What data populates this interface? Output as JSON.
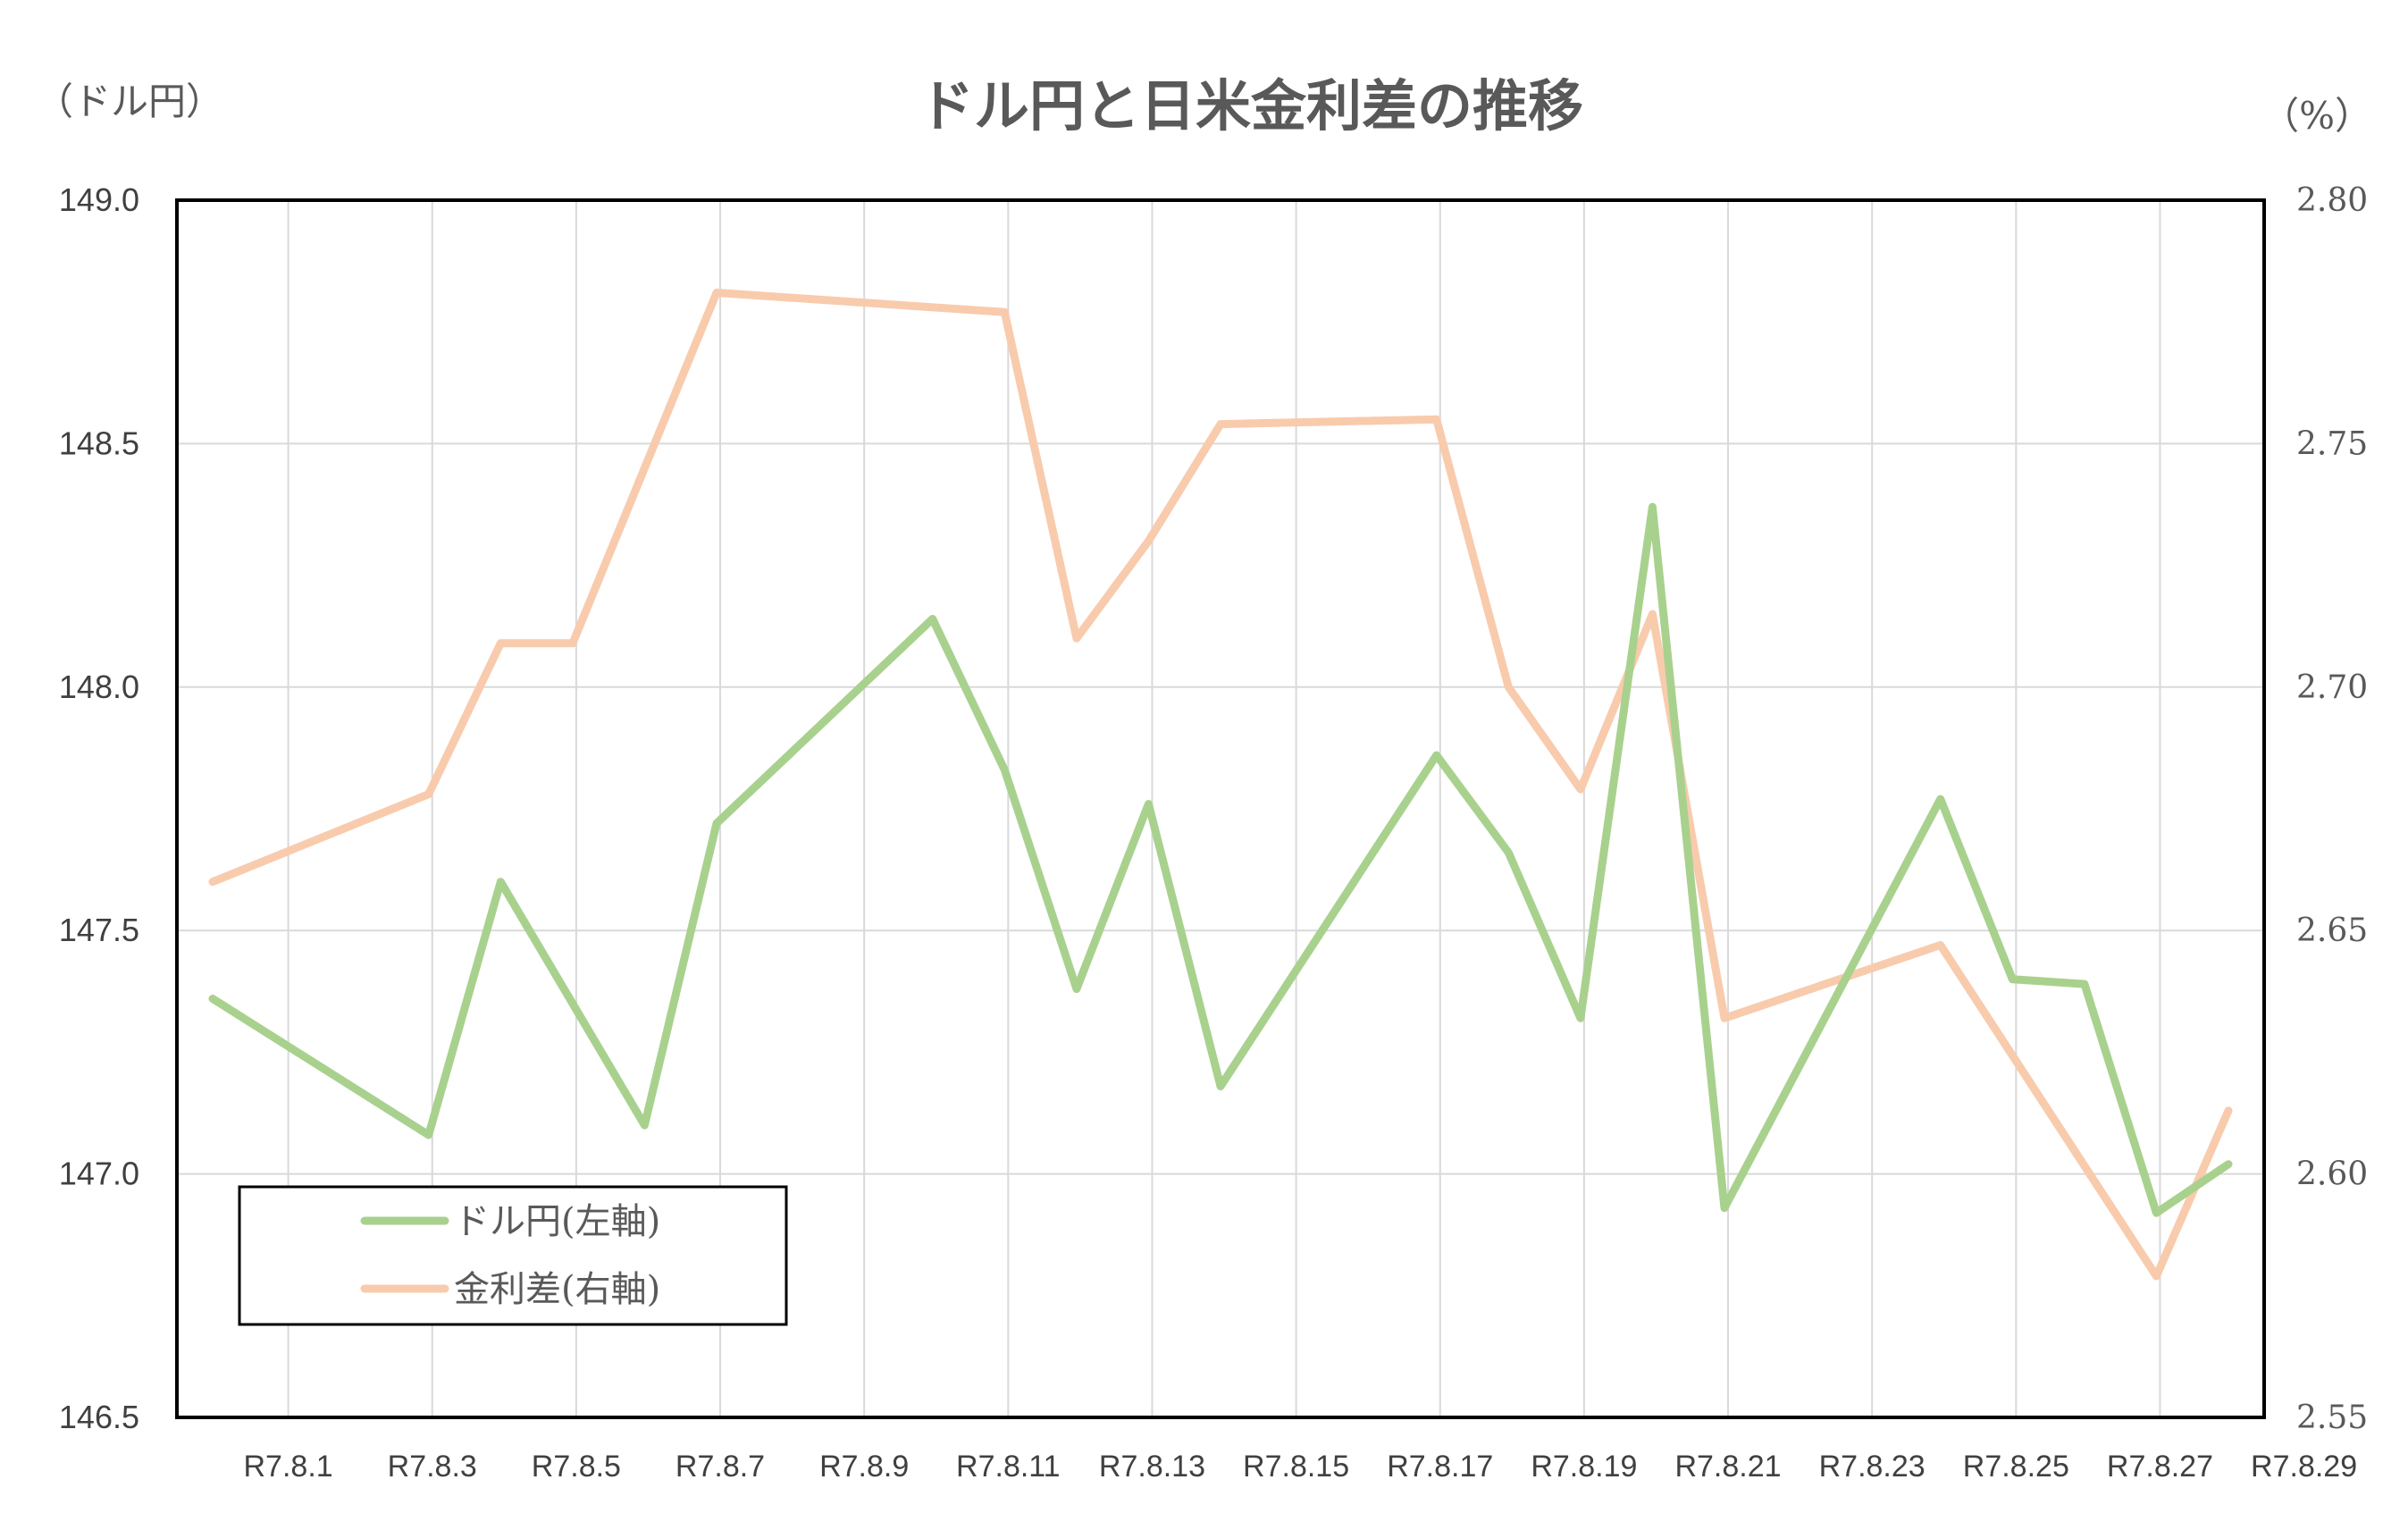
{
  "chart_data": {
    "type": "line",
    "title": "ドル円と日米金利差の推移",
    "left_axis_unit": "（ドル円）",
    "right_axis_unit": "（%）",
    "x_tick_labels": [
      "R7.8.1",
      "R7.8.3",
      "R7.8.5",
      "R7.8.7",
      "R7.8.9",
      "R7.8.11",
      "R7.8.13",
      "R7.8.15",
      "R7.8.17",
      "R7.8.19",
      "R7.8.21",
      "R7.8.23",
      "R7.8.25",
      "R7.8.27",
      "R7.8.29"
    ],
    "x_range": [
      1,
      29
    ],
    "y_left": {
      "min": 146.5,
      "max": 149.0,
      "step": 0.5,
      "tick_labels": [
        "146.5",
        "147.0",
        "147.5",
        "148.0",
        "148.5",
        "149.0"
      ]
    },
    "y_right": {
      "min": 2.55,
      "max": 2.8,
      "step": 0.05,
      "tick_labels": [
        "2.55",
        "2.60",
        "2.65",
        "2.70",
        "2.75",
        "2.80"
      ]
    },
    "grid": true,
    "legend_position": "bottom-left",
    "series": [
      {
        "name": "ドル円(左軸)",
        "axis": "left",
        "color": "#a9d18e",
        "points": [
          [
            1,
            147.36
          ],
          [
            4,
            147.08
          ],
          [
            5,
            147.6
          ],
          [
            7,
            147.1
          ],
          [
            8,
            147.72
          ],
          [
            11,
            148.14
          ],
          [
            12,
            147.83
          ],
          [
            13,
            147.38
          ],
          [
            14,
            147.76
          ],
          [
            15,
            147.18
          ],
          [
            18,
            147.86
          ],
          [
            19,
            147.66
          ],
          [
            20,
            147.32
          ],
          [
            21,
            148.37
          ],
          [
            22,
            146.93
          ],
          [
            25,
            147.77
          ],
          [
            26,
            147.4
          ],
          [
            27,
            147.39
          ],
          [
            28,
            146.92
          ],
          [
            29,
            147.02
          ]
        ]
      },
      {
        "name": "金利差(右軸)",
        "axis": "right",
        "color": "#f8cbad",
        "points": [
          [
            1,
            2.66
          ],
          [
            4,
            2.678
          ],
          [
            5,
            2.709
          ],
          [
            6,
            2.709
          ],
          [
            8,
            2.781
          ],
          [
            12,
            2.777
          ],
          [
            13,
            2.71
          ],
          [
            14,
            2.73
          ],
          [
            15,
            2.754
          ],
          [
            18,
            2.755
          ],
          [
            19,
            2.7
          ],
          [
            20,
            2.679
          ],
          [
            21,
            2.715
          ],
          [
            22,
            2.632
          ],
          [
            25,
            2.647
          ],
          [
            28,
            2.579
          ],
          [
            29,
            2.613
          ]
        ]
      }
    ]
  }
}
